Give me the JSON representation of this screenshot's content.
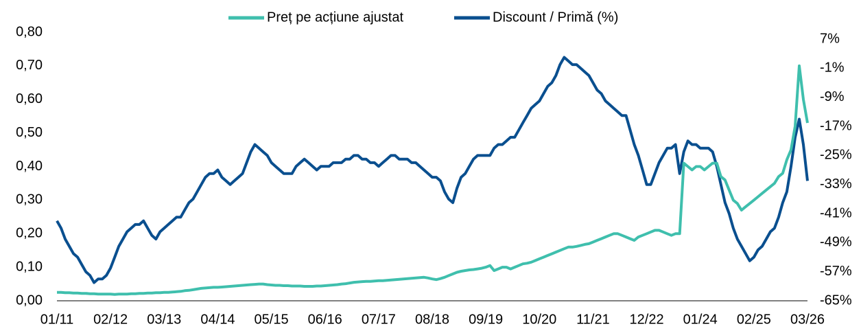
{
  "chart_data": {
    "type": "line",
    "categories": [
      "01/11",
      null,
      null,
      null,
      null,
      null,
      null,
      null,
      null,
      null,
      null,
      null,
      null,
      "02/12",
      null,
      null,
      null,
      null,
      null,
      null,
      null,
      null,
      null,
      null,
      null,
      null,
      "03/13",
      null,
      null,
      null,
      null,
      null,
      null,
      null,
      null,
      null,
      null,
      null,
      null,
      "04/14",
      null,
      null,
      null,
      null,
      null,
      null,
      null,
      null,
      null,
      null,
      null,
      null,
      "05/15",
      null,
      null,
      null,
      null,
      null,
      null,
      null,
      null,
      null,
      null,
      null,
      null,
      "06/16",
      null,
      null,
      null,
      null,
      null,
      null,
      null,
      null,
      null,
      null,
      null,
      null,
      "07/17",
      null,
      null,
      null,
      null,
      null,
      null,
      null,
      null,
      null,
      null,
      null,
      null,
      "08/18",
      null,
      null,
      null,
      null,
      null,
      null,
      null,
      null,
      null,
      null,
      null,
      null,
      "09/19",
      null,
      null,
      null,
      null,
      null,
      null,
      null,
      null,
      null,
      null,
      null,
      null,
      "10/20",
      null,
      null,
      null,
      null,
      null,
      null,
      null,
      null,
      null,
      null,
      null,
      null,
      "11/21",
      null,
      null,
      null,
      null,
      null,
      null,
      null,
      null,
      null,
      null,
      null,
      null,
      "12/22",
      null,
      null,
      null,
      null,
      null,
      null,
      null,
      null,
      null,
      null,
      null,
      null,
      "01/24",
      null,
      null,
      null,
      null,
      null,
      null,
      null,
      null,
      null,
      null,
      null,
      null,
      "02/25",
      null,
      null,
      null,
      null,
      null,
      null,
      null,
      null,
      null,
      null,
      null,
      null,
      "03/26"
    ],
    "series": [
      {
        "name": "Preț pe acțiune ajustat",
        "color": "#3fbfad",
        "values": [
          0.025,
          0.025,
          0.024,
          0.024,
          0.023,
          0.023,
          0.022,
          0.022,
          0.021,
          0.021,
          0.02,
          0.02,
          0.02,
          0.02,
          0.019,
          0.02,
          0.02,
          0.02,
          0.021,
          0.021,
          0.022,
          0.022,
          0.023,
          0.023,
          0.024,
          0.024,
          0.025,
          0.025,
          0.026,
          0.027,
          0.028,
          0.03,
          0.031,
          0.033,
          0.035,
          0.037,
          0.038,
          0.039,
          0.04,
          0.04,
          0.041,
          0.042,
          0.043,
          0.044,
          0.045,
          0.046,
          0.047,
          0.048,
          0.049,
          0.05,
          0.05,
          0.048,
          0.047,
          0.046,
          0.046,
          0.045,
          0.045,
          0.044,
          0.044,
          0.044,
          0.043,
          0.043,
          0.043,
          0.044,
          0.044,
          0.045,
          0.046,
          0.047,
          0.048,
          0.05,
          0.051,
          0.053,
          0.055,
          0.056,
          0.057,
          0.058,
          0.058,
          0.059,
          0.06,
          0.06,
          0.061,
          0.062,
          0.063,
          0.064,
          0.065,
          0.066,
          0.067,
          0.068,
          0.069,
          0.07,
          0.068,
          0.065,
          0.063,
          0.066,
          0.07,
          0.075,
          0.08,
          0.085,
          0.088,
          0.09,
          0.092,
          0.093,
          0.095,
          0.097,
          0.1,
          0.105,
          0.09,
          0.095,
          0.1,
          0.1,
          0.095,
          0.1,
          0.105,
          0.11,
          0.112,
          0.115,
          0.12,
          0.125,
          0.13,
          0.135,
          0.14,
          0.145,
          0.15,
          0.155,
          0.16,
          0.16,
          0.162,
          0.165,
          0.168,
          0.17,
          0.175,
          0.18,
          0.185,
          0.19,
          0.195,
          0.2,
          0.2,
          0.195,
          0.19,
          0.185,
          0.18,
          0.19,
          0.195,
          0.2,
          0.205,
          0.21,
          0.21,
          0.205,
          0.2,
          0.195,
          0.2,
          0.2,
          0.41,
          0.4,
          0.39,
          0.4,
          0.4,
          0.39,
          0.4,
          0.41,
          0.41,
          0.37,
          0.36,
          0.33,
          0.3,
          0.29,
          0.27,
          0.28,
          0.29,
          0.3,
          0.31,
          0.32,
          0.33,
          0.34,
          0.35,
          0.37,
          0.38,
          0.42,
          0.45,
          0.52,
          0.7,
          0.6,
          0.53
        ]
      },
      {
        "name": "Discount / Primă (%)",
        "color": "#0a4f8f",
        "axis": "y2",
        "values": [
          -43,
          -45,
          -48,
          -50,
          -52,
          -53,
          -55,
          -57,
          -58,
          -60,
          -59,
          -59,
          -58,
          -56,
          -53,
          -50,
          -48,
          -46,
          -45,
          -44,
          -44,
          -43,
          -45,
          -47,
          -48,
          -46,
          -45,
          -44,
          -43,
          -42,
          -42,
          -40,
          -38,
          -37,
          -35,
          -33,
          -31,
          -30,
          -30,
          -29,
          -31,
          -32,
          -33,
          -32,
          -31,
          -30,
          -27,
          -24,
          -22,
          -23,
          -24,
          -25,
          -27,
          -28,
          -29,
          -30,
          -30,
          -30,
          -28,
          -27,
          -26,
          -27,
          -28,
          -29,
          -28,
          -28,
          -28,
          -27,
          -27,
          -27,
          -26,
          -26,
          -25,
          -25,
          -26,
          -26,
          -27,
          -27,
          -28,
          -27,
          -26,
          -25,
          -25,
          -26,
          -26,
          -26,
          -27,
          -27,
          -28,
          -29,
          -30,
          -31,
          -31,
          -32,
          -35,
          -37,
          -38,
          -34,
          -31,
          -30,
          -28,
          -26,
          -25,
          -25,
          -25,
          -25,
          -23,
          -22,
          -22,
          -21,
          -20,
          -20,
          -18,
          -16,
          -14,
          -12,
          -11,
          -10,
          -8,
          -6,
          -5,
          -3,
          0,
          2,
          1,
          0,
          0,
          -1,
          -2,
          -3,
          -5,
          -7,
          -8,
          -10,
          -11,
          -12,
          -13,
          -14,
          -14,
          -18,
          -22,
          -25,
          -29,
          -33,
          -33,
          -30,
          -27,
          -25,
          -23,
          -23,
          -22,
          -30,
          -24,
          -21,
          -22,
          -22,
          -23,
          -23,
          -23,
          -24,
          -28,
          -33,
          -38,
          -41,
          -45,
          -48,
          -50,
          -52,
          -54,
          -53,
          -51,
          -50,
          -48,
          -46,
          -45,
          -42,
          -38,
          -35,
          -28,
          -20,
          -15,
          -22,
          -32
        ]
      }
    ],
    "ylim": [
      0,
      0.8
    ],
    "yticks": [
      {
        "value": 0,
        "label": "0,00"
      },
      {
        "value": 0.1,
        "label": "0,10"
      },
      {
        "value": 0.2,
        "label": "0,20"
      },
      {
        "value": 0.3,
        "label": "0,30"
      },
      {
        "value": 0.4,
        "label": "0,40"
      },
      {
        "value": 0.5,
        "label": "0,50"
      },
      {
        "value": 0.6,
        "label": "0,60"
      },
      {
        "value": 0.7,
        "label": "0,70"
      },
      {
        "value": 0.8,
        "label": "0,80"
      }
    ],
    "y2lim": [
      -65,
      8.9
    ],
    "y2ticks": [
      {
        "value": -65,
        "label": "-65%"
      },
      {
        "value": -57,
        "label": "-57%"
      },
      {
        "value": -49,
        "label": "-49%"
      },
      {
        "value": -41,
        "label": "-41%"
      },
      {
        "value": -33,
        "label": "-33%"
      },
      {
        "value": -25,
        "label": "-25%"
      },
      {
        "value": -17,
        "label": "-17%"
      },
      {
        "value": -9,
        "label": "-9%"
      },
      {
        "value": -1,
        "label": "-1%"
      },
      {
        "value": 7,
        "label": "7%"
      }
    ],
    "legend": "top"
  }
}
